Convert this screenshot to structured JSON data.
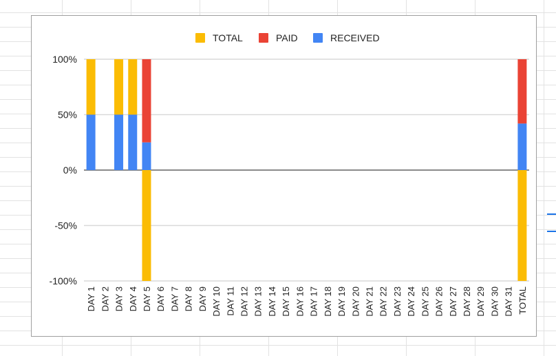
{
  "chart_data": {
    "type": "bar",
    "stacked": true,
    "categories": [
      "DAY 1",
      "DAY 2",
      "DAY 3",
      "DAY 4",
      "DAY 5",
      "DAY 6",
      "DAY 7",
      "DAY 8",
      "DAY 9",
      "DAY 10",
      "DAY 11",
      "DAY 12",
      "DAY 13",
      "DAY 14",
      "DAY 15",
      "DAY 16",
      "DAY 17",
      "DAY 18",
      "DAY 19",
      "DAY 20",
      "DAY 21",
      "DAY 22",
      "DAY 23",
      "DAY 24",
      "DAY 25",
      "DAY 26",
      "DAY 27",
      "DAY 28",
      "DAY 29",
      "DAY 30",
      "DAY 31",
      "TOTAL"
    ],
    "series": [
      {
        "name": "TOTAL",
        "color": "#FBBC04",
        "values": [
          50,
          0,
          50,
          50,
          -100,
          0,
          0,
          0,
          0,
          0,
          0,
          0,
          0,
          0,
          0,
          0,
          0,
          0,
          0,
          0,
          0,
          0,
          0,
          0,
          0,
          0,
          0,
          0,
          0,
          0,
          0,
          -100
        ]
      },
      {
        "name": "PAID",
        "color": "#EA4335",
        "values": [
          0,
          0,
          0,
          0,
          75,
          0,
          0,
          0,
          0,
          0,
          0,
          0,
          0,
          0,
          0,
          0,
          0,
          0,
          0,
          0,
          0,
          0,
          0,
          0,
          0,
          0,
          0,
          0,
          0,
          0,
          0,
          58
        ]
      },
      {
        "name": "RECEIVED",
        "color": "#4285F4",
        "values": [
          50,
          0,
          50,
          50,
          25,
          0,
          0,
          0,
          0,
          0,
          0,
          0,
          0,
          0,
          0,
          0,
          0,
          0,
          0,
          0,
          0,
          0,
          0,
          0,
          0,
          0,
          0,
          0,
          0,
          0,
          0,
          42
        ]
      }
    ],
    "stack_order": [
      "RECEIVED",
      "PAID",
      "TOTAL"
    ],
    "ylim": [
      -100,
      100
    ],
    "yticks": [
      -100,
      -50,
      0,
      50,
      100
    ],
    "ytick_labels": [
      "-100%",
      "-50%",
      "0%",
      "50%",
      "100%"
    ],
    "grid": true,
    "legend_position": "top-center",
    "title": "",
    "xlabel": "",
    "ylabel": ""
  }
}
